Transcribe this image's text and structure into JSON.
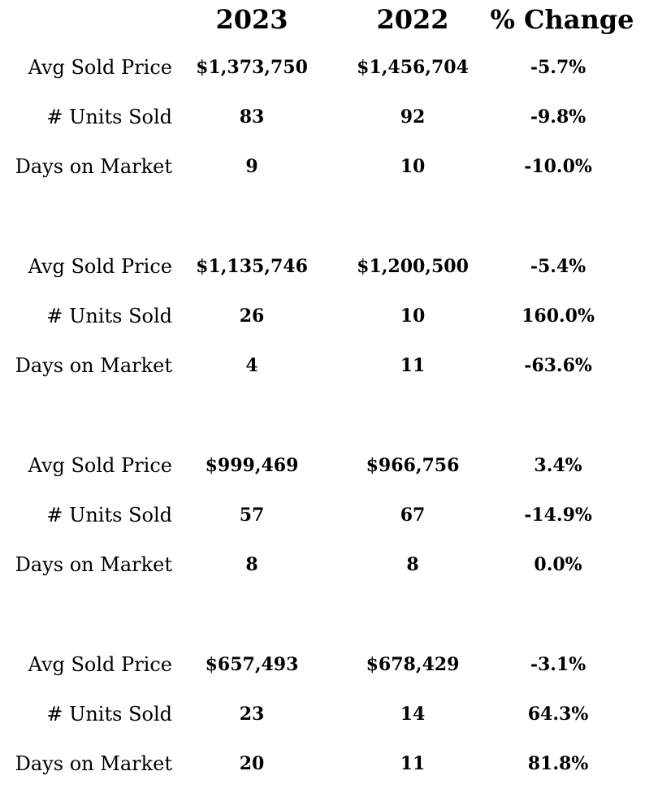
{
  "headers": {
    "col_2023": "2023",
    "col_2022": "2022",
    "col_change": "% Change"
  },
  "groups": [
    {
      "rows": [
        {
          "label": "Avg Sold Price",
          "v2023": "$1,373,750",
          "v2022": "$1,456,704",
          "change": "-5.7%"
        },
        {
          "label": "# Units Sold",
          "v2023": "83",
          "v2022": "92",
          "change": "-9.8%"
        },
        {
          "label": "Days on Market",
          "v2023": "9",
          "v2022": "10",
          "change": "-10.0%"
        }
      ]
    },
    {
      "rows": [
        {
          "label": "Avg Sold Price",
          "v2023": "$1,135,746",
          "v2022": "$1,200,500",
          "change": "-5.4%"
        },
        {
          "label": "# Units Sold",
          "v2023": "26",
          "v2022": "10",
          "change": "160.0%"
        },
        {
          "label": "Days on Market",
          "v2023": "4",
          "v2022": "11",
          "change": "-63.6%"
        }
      ]
    },
    {
      "rows": [
        {
          "label": "Avg Sold Price",
          "v2023": "$999,469",
          "v2022": "$966,756",
          "change": "3.4%"
        },
        {
          "label": "# Units Sold",
          "v2023": "57",
          "v2022": "67",
          "change": "-14.9%"
        },
        {
          "label": "Days on Market",
          "v2023": "8",
          "v2022": "8",
          "change": "0.0%"
        }
      ]
    },
    {
      "rows": [
        {
          "label": "Avg Sold Price",
          "v2023": "$657,493",
          "v2022": "$678,429",
          "change": "-3.1%"
        },
        {
          "label": "# Units Sold",
          "v2023": "23",
          "v2022": "14",
          "change": "64.3%"
        },
        {
          "label": "Days on Market",
          "v2023": "20",
          "v2022": "11",
          "change": "81.8%"
        }
      ]
    }
  ]
}
